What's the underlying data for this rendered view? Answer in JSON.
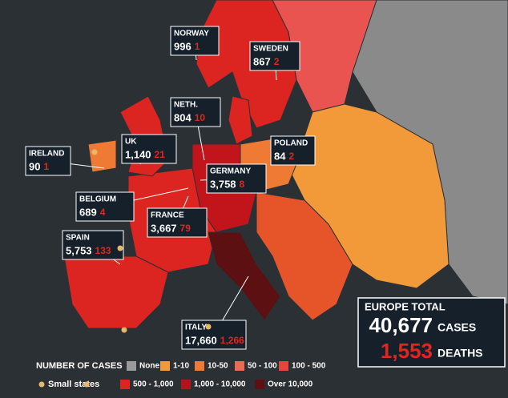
{
  "callouts": [
    {
      "country": "NORWAY",
      "cases": "996",
      "deaths": "1"
    },
    {
      "country": "SWEDEN",
      "cases": "867",
      "deaths": "2"
    },
    {
      "country": "NETH.",
      "cases": "804",
      "deaths": "10"
    },
    {
      "country": "POLAND",
      "cases": "84",
      "deaths": "2"
    },
    {
      "country": "IRELAND",
      "cases": "90",
      "deaths": "1"
    },
    {
      "country": "UK",
      "cases": "1,140",
      "deaths": "21"
    },
    {
      "country": "GERMANY",
      "cases": "3,758",
      "deaths": "8"
    },
    {
      "country": "BELGIUM",
      "cases": "689",
      "deaths": "4"
    },
    {
      "country": "FRANCE",
      "cases": "3,667",
      "deaths": "79"
    },
    {
      "country": "SPAIN",
      "cases": "5,753",
      "deaths": "133"
    },
    {
      "country": "ITALY",
      "cases": "17,660",
      "deaths": "1,266"
    }
  ],
  "total": {
    "title": "EUROPE TOTAL",
    "cases": "40,677",
    "cases_label": "CASES",
    "deaths": "1,553",
    "deaths_label": "DEATHS"
  },
  "legend": {
    "title": "NUMBER OF CASES",
    "small_states": "Small states",
    "small_states_color": "#e8b86a",
    "items": [
      {
        "label": "None",
        "color": "#9a9a9a"
      },
      {
        "label": "1-10",
        "color": "#f29a3a"
      },
      {
        "label": "10-50",
        "color": "#ef7a34"
      },
      {
        "label": "50 - 100",
        "color": "#ec6a55"
      },
      {
        "label": "100 - 500",
        "color": "#e8433c"
      },
      {
        "label": "500 - 1,000",
        "color": "#dc2420"
      },
      {
        "label": "1,000 - 10,000",
        "color": "#b3141b"
      },
      {
        "label": "Over 10,000",
        "color": "#5c1012"
      }
    ]
  }
}
